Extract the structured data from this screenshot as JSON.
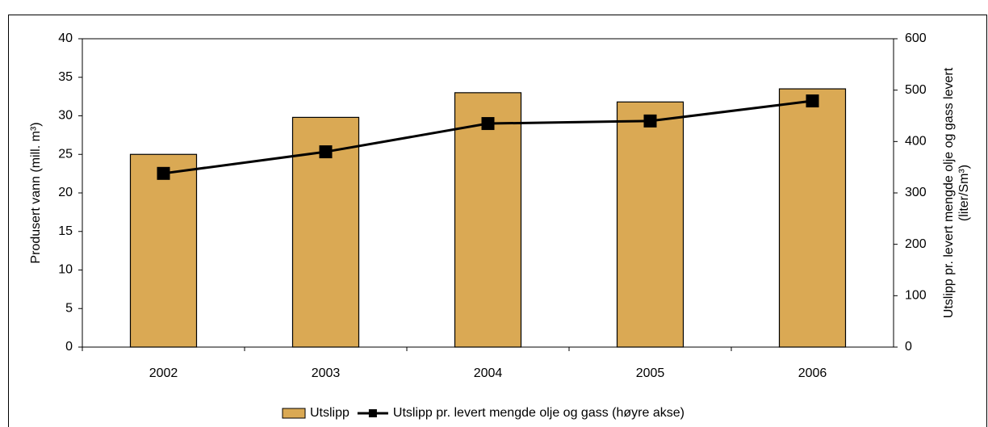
{
  "chart_data": {
    "type": "bar",
    "ylabel": "Produsert vann (mill. m³)",
    "y2label": [
      "Utslipp pr. levert mengde olje og gass levert",
      "(liter/Sm³)"
    ],
    "categories": [
      "2002",
      "2003",
      "2004",
      "2005",
      "2006"
    ],
    "series": [
      {
        "name": "Utslipp",
        "type": "bar",
        "color": "#daa954",
        "values": [
          25,
          29.8,
          33,
          31.8,
          33.5
        ]
      },
      {
        "name": "Utslipp pr. levert mengde olje og gass (høyre akse)",
        "type": "line",
        "axis": "y2",
        "color": "#000000",
        "values": [
          338,
          380,
          435,
          440,
          479
        ]
      }
    ],
    "ylim": [
      0,
      40
    ],
    "yticks": [
      0,
      5,
      10,
      15,
      20,
      25,
      30,
      35,
      40
    ],
    "y2lim": [
      0,
      600
    ],
    "y2ticks": [
      0,
      100,
      200,
      300,
      400,
      500,
      600
    ],
    "legend": "bottom"
  }
}
